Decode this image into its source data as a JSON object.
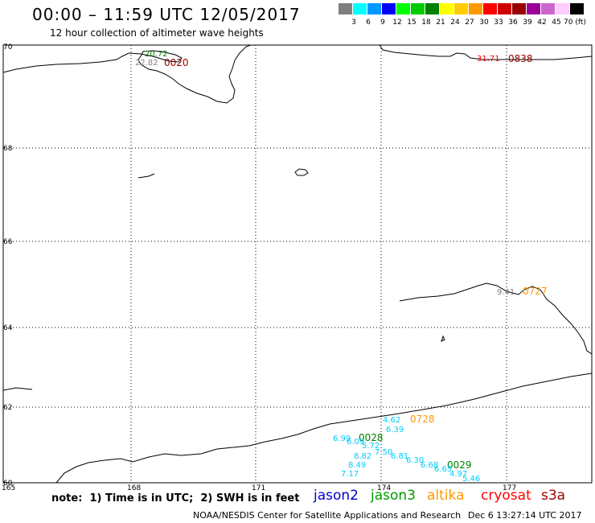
{
  "header": {
    "title": "00:00 – 11:59 UTC 12/05/2017",
    "subtitle": "12 hour collection of altimeter wave heights"
  },
  "color_scale": {
    "colors": [
      "#808080",
      "#00ffff",
      "#0099ff",
      "#0000ff",
      "#00ff00",
      "#00cc00",
      "#008000",
      "#ffff00",
      "#ffcc00",
      "#ff9900",
      "#ff0000",
      "#cc0000",
      "#990000",
      "#990099",
      "#cc66cc",
      "#ffccff",
      "#000000"
    ],
    "labels": [
      "3",
      "6",
      "9",
      "12",
      "15",
      "18",
      "21",
      "24",
      "27",
      "30",
      "33",
      "36",
      "39",
      "42",
      "45",
      "70 (ft)"
    ]
  },
  "map": {
    "lat_labels": [
      "70",
      "68",
      "66",
      "64",
      "62",
      "60"
    ],
    "lon_labels": [
      "165",
      "168",
      "171",
      "174",
      "177"
    ],
    "annotations": [
      {
        "text": "20.72",
        "color": "#008000"
      },
      {
        "text": "22.82",
        "color": "#808080"
      },
      {
        "text": "0020",
        "color": "#990000"
      },
      {
        "text": "31.71",
        "color": "#ff0000"
      },
      {
        "text": "0838",
        "color": "#990000"
      },
      {
        "text": "9.41",
        "color": "#808080"
      },
      {
        "text": "0727",
        "color": "#ff9900"
      },
      {
        "text": "4.62",
        "color": "#00ccff"
      },
      {
        "text": "0728",
        "color": "#ff9900"
      },
      {
        "text": "6.39",
        "color": "#00ccff"
      },
      {
        "text": "6.99",
        "color": "#00ccff"
      },
      {
        "text": "0028",
        "color": "#008000"
      },
      {
        "text": "6.09",
        "color": "#00ccff"
      },
      {
        "text": "5.72",
        "color": "#00ccff"
      },
      {
        "text": "7.50",
        "color": "#00ccff"
      },
      {
        "text": "8.82",
        "color": "#00ccff"
      },
      {
        "text": "6.81",
        "color": "#00ccff"
      },
      {
        "text": "6.30",
        "color": "#00ccff"
      },
      {
        "text": "8.49",
        "color": "#00ccff"
      },
      {
        "text": "6.68",
        "color": "#00ccff"
      },
      {
        "text": "0029",
        "color": "#008000"
      },
      {
        "text": "6.65",
        "color": "#00ccff"
      },
      {
        "text": "7.17",
        "color": "#00ccff"
      },
      {
        "text": "4.97",
        "color": "#00ccff"
      },
      {
        "text": "5.46",
        "color": "#00ccff"
      }
    ]
  },
  "note": "note:  1) Time is in UTC;  2) SWH is in feet",
  "legend": [
    {
      "label": "jason2",
      "color": "#0000cc"
    },
    {
      "label": "jason3",
      "color": "#009900"
    },
    {
      "label": "altika",
      "color": "#ff9900"
    },
    {
      "label": "cryosat",
      "color": "#ff0000"
    },
    {
      "label": "s3a",
      "color": "#990000"
    }
  ],
  "footer": {
    "left": "NOAA/NESDIS Center for Satellite Applications and Research",
    "right": "Dec  6 13:27:14 UTC 2017"
  }
}
